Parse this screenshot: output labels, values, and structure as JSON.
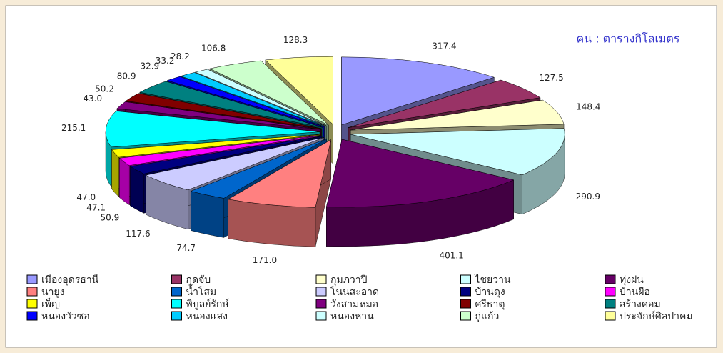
{
  "chart_data": {
    "type": "pie3d",
    "annotation": "คน : ตารางกิโลเมตร",
    "categories": [
      "เมืองอุดรธานี",
      "กุดจับ",
      "กุมภวาปี",
      "ไชยวาน",
      "ทุ่งฝน",
      "นายูง",
      "น้ำโสม",
      "โนนสะอาด",
      "บ้านดุง",
      "บ้านผือ",
      "เพ็ญ",
      "พิบูลย์รักษ์",
      "วังสามหมอ",
      "ศรีธาตุ",
      "สร้างคอม",
      "หนองวัวซอ",
      "หนองแสง",
      "หนองหาน",
      "กู่แก้ว",
      "ประจักษ์ศิลปาคม"
    ],
    "values": [
      317.4,
      127.5,
      148.4,
      290.9,
      401.1,
      171.0,
      74.7,
      117.6,
      50.9,
      47.1,
      47.0,
      215.1,
      43.0,
      50.2,
      80.9,
      32.9,
      33.2,
      28.2,
      106.8,
      128.3
    ],
    "value_labels": [
      "317.4",
      "127.5",
      "148.4",
      "290.9",
      "401.1",
      "171.0",
      "74.7",
      "117.6",
      "50.9",
      "47.1",
      "47.0",
      "215.1",
      "43.0",
      "50.2",
      "80.9",
      "32.9",
      "33.2",
      "28.2",
      "106.8",
      "128.3"
    ],
    "colors": [
      "#9999FF",
      "#993366",
      "#FFFFCC",
      "#CCFFFF",
      "#660066",
      "#FF8080",
      "#0066CC",
      "#CCCCFF",
      "#000080",
      "#FF00FF",
      "#FFFF00",
      "#00FFFF",
      "#800080",
      "#800000",
      "#008080",
      "#0000FF",
      "#00CCFF",
      "#CCFFFF",
      "#CCFFCC",
      "#FFFF99"
    ],
    "legend": "bottom"
  }
}
